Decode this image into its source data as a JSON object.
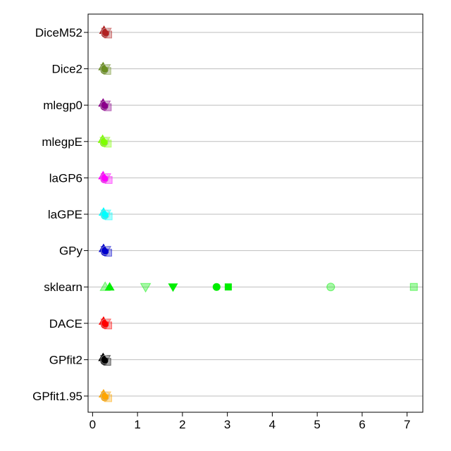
{
  "chart_data": {
    "type": "scatter",
    "title": "",
    "xlabel": "",
    "ylabel": "",
    "xlim": [
      -0.1,
      7.35
    ],
    "x_ticks": [
      "0",
      "1",
      "2",
      "3",
      "4",
      "5",
      "6",
      "7"
    ],
    "x_tick_values": [
      0,
      1,
      2,
      3,
      4,
      5,
      6,
      7
    ],
    "grid": "horizontal gridlines at each category",
    "legend": "none",
    "categories": [
      "DiceM52",
      "Dice2",
      "mlegp0",
      "mlegpE",
      "laGP6",
      "laGPE",
      "GPy",
      "sklearn",
      "DACE",
      "GPfit2",
      "GPfit1.95"
    ],
    "series": [
      {
        "category": "DiceM52",
        "color": "#b22222",
        "points": [
          {
            "x": 0.28,
            "shape": "circle"
          },
          {
            "x": 0.3,
            "shape": "square"
          },
          {
            "x": 0.27,
            "shape": "triangle-up"
          },
          {
            "x": 0.29,
            "shape": "triangle-down"
          }
        ]
      },
      {
        "category": "Dice2",
        "color": "#6b8e23",
        "points": [
          {
            "x": 0.26,
            "shape": "circle"
          },
          {
            "x": 0.28,
            "shape": "square"
          },
          {
            "x": 0.25,
            "shape": "triangle-up"
          },
          {
            "x": 0.27,
            "shape": "triangle-down"
          }
        ]
      },
      {
        "category": "mlegp0",
        "color": "#8b008b",
        "points": [
          {
            "x": 0.26,
            "shape": "circle"
          },
          {
            "x": 0.29,
            "shape": "square"
          },
          {
            "x": 0.25,
            "shape": "triangle-up"
          },
          {
            "x": 0.27,
            "shape": "triangle-down"
          }
        ]
      },
      {
        "category": "mlegpE",
        "color": "#7fff00",
        "points": [
          {
            "x": 0.25,
            "shape": "circle"
          },
          {
            "x": 0.29,
            "shape": "square"
          },
          {
            "x": 0.24,
            "shape": "triangle-up"
          },
          {
            "x": 0.26,
            "shape": "triangle-down"
          }
        ]
      },
      {
        "category": "laGP6",
        "color": "#ff00ff",
        "points": [
          {
            "x": 0.26,
            "shape": "circle"
          },
          {
            "x": 0.31,
            "shape": "square"
          },
          {
            "x": 0.25,
            "shape": "triangle-up"
          },
          {
            "x": 0.28,
            "shape": "triangle-down"
          }
        ]
      },
      {
        "category": "laGPE",
        "color": "#00ffff",
        "points": [
          {
            "x": 0.27,
            "shape": "circle"
          },
          {
            "x": 0.31,
            "shape": "square"
          },
          {
            "x": 0.26,
            "shape": "triangle-up"
          },
          {
            "x": 0.28,
            "shape": "triangle-down"
          }
        ]
      },
      {
        "category": "GPy",
        "color": "#0000cd",
        "points": [
          {
            "x": 0.27,
            "shape": "circle"
          },
          {
            "x": 0.3,
            "shape": "square"
          },
          {
            "x": 0.26,
            "shape": "triangle-up"
          },
          {
            "x": 0.28,
            "shape": "triangle-down"
          }
        ]
      },
      {
        "category": "sklearn",
        "color": "#00ee00",
        "points": [
          {
            "x": 0.38,
            "shape": "triangle-up"
          },
          {
            "x": 1.79,
            "shape": "triangle-down"
          },
          {
            "x": 2.76,
            "shape": "circle"
          },
          {
            "x": 3.02,
            "shape": "square"
          },
          {
            "x": 0.28,
            "shape": "triangle-up",
            "faded": true
          },
          {
            "x": 1.18,
            "shape": "triangle-down",
            "faded": true
          },
          {
            "x": 5.3,
            "shape": "circle",
            "faded": true
          },
          {
            "x": 7.15,
            "shape": "square",
            "faded": true
          }
        ]
      },
      {
        "category": "DACE",
        "color": "#ff0000",
        "points": [
          {
            "x": 0.27,
            "shape": "circle"
          },
          {
            "x": 0.3,
            "shape": "square"
          },
          {
            "x": 0.26,
            "shape": "triangle-up"
          },
          {
            "x": 0.28,
            "shape": "triangle-down"
          }
        ]
      },
      {
        "category": "GPfit2",
        "color": "#000000",
        "points": [
          {
            "x": 0.26,
            "shape": "circle"
          },
          {
            "x": 0.28,
            "shape": "square"
          },
          {
            "x": 0.25,
            "shape": "triangle-up"
          },
          {
            "x": 0.27,
            "shape": "triangle-down"
          }
        ]
      },
      {
        "category": "GPfit1.95",
        "color": "#ffa500",
        "points": [
          {
            "x": 0.27,
            "shape": "circle"
          },
          {
            "x": 0.3,
            "shape": "square"
          },
          {
            "x": 0.26,
            "shape": "triangle-up"
          },
          {
            "x": 0.28,
            "shape": "triangle-down"
          }
        ]
      }
    ]
  }
}
